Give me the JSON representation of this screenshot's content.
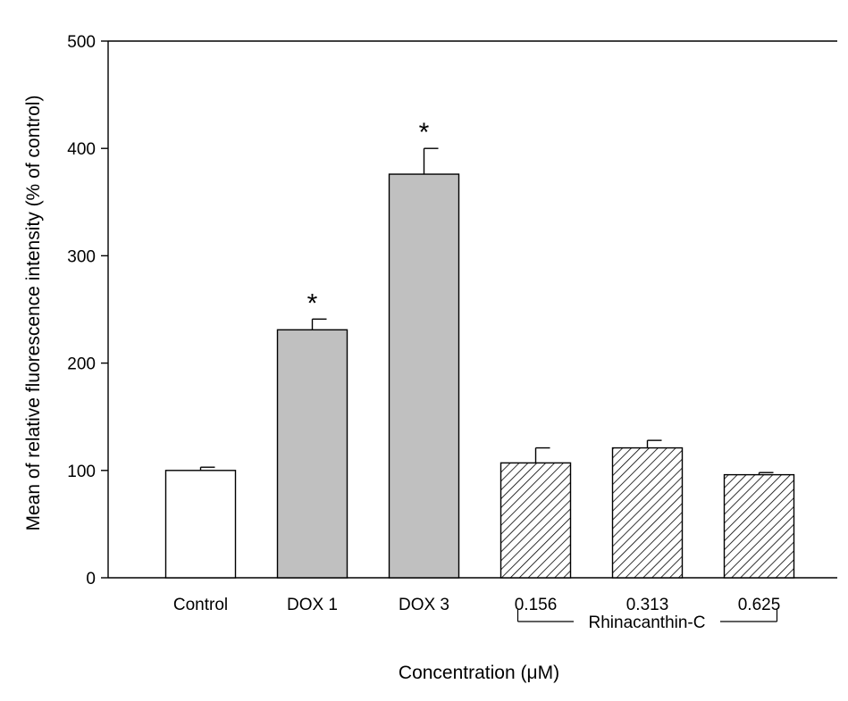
{
  "chart_data": {
    "type": "bar",
    "categories": [
      "Control",
      "DOX 1",
      "DOX 3",
      "0.156",
      "0.313",
      "0.625"
    ],
    "values": [
      100,
      231,
      376,
      107,
      121,
      96
    ],
    "errors": [
      3,
      10,
      24,
      14,
      7,
      2
    ],
    "significance": [
      "",
      "*",
      "*",
      "",
      "",
      ""
    ],
    "fills": [
      "white",
      "gray",
      "gray",
      "hatch",
      "hatch",
      "hatch"
    ],
    "colors": {
      "gray": "#c0c0c0",
      "white": "#ffffff",
      "line": "#000000"
    },
    "ylim": [
      0,
      500
    ],
    "yticks": [
      0,
      100,
      200,
      300,
      400,
      500
    ],
    "ylabel": "Mean of relative fluorescence intensity (% of control)",
    "xlabel": "Concentration (μM)",
    "group_bracket": {
      "label": "Rhinacanthin-C",
      "from": 3,
      "to": 5
    },
    "grid": false,
    "legend": "none"
  }
}
